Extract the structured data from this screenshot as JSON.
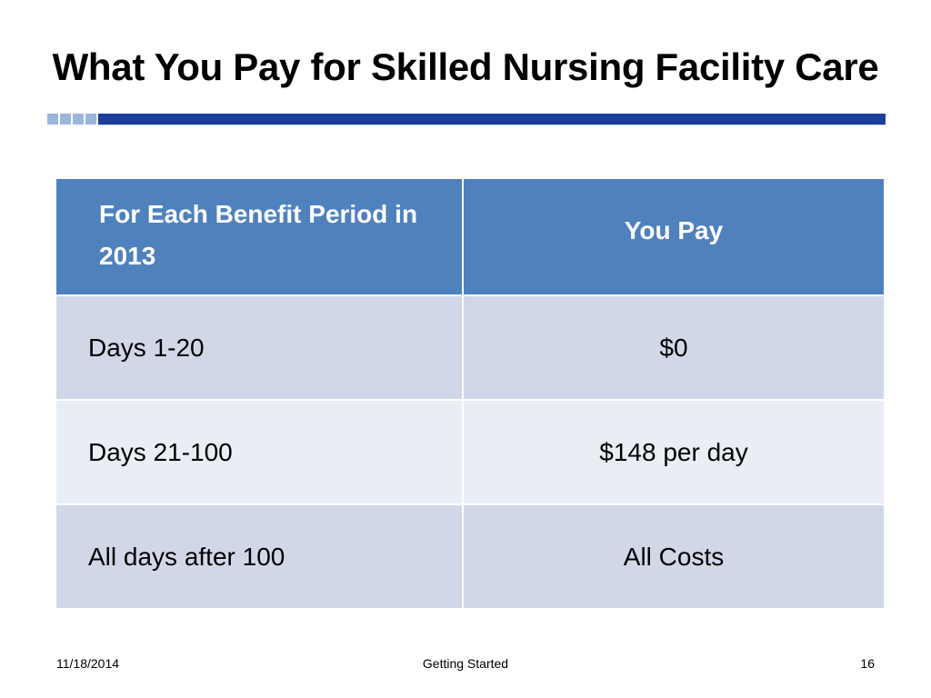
{
  "slide": {
    "title": "What You Pay for Skilled Nursing Facility Care"
  },
  "table": {
    "headers": [
      "For Each Benefit Period in 2013",
      "You Pay"
    ],
    "rows": [
      [
        "Days 1-20",
        "$0"
      ],
      [
        "Days 21-100",
        "$148 per day"
      ],
      [
        "All days after 100",
        "All Costs"
      ]
    ]
  },
  "footer": {
    "date": "11/18/2014",
    "center": "Getting Started",
    "page_number": "16"
  },
  "colors": {
    "header_fill": "#4f81bd",
    "row_dark": "#d0d8e8",
    "row_light": "#e9edf4",
    "rule_bar": "#1c3f9e"
  }
}
